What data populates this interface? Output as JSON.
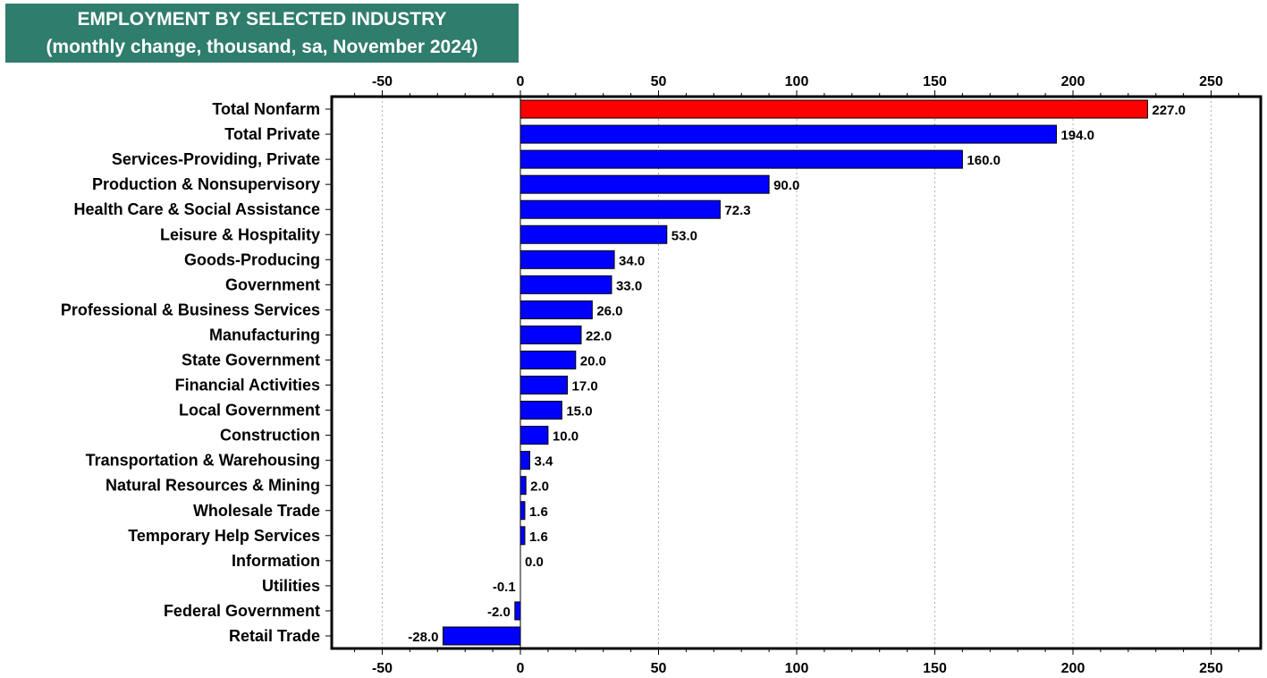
{
  "title_box": {
    "line1": "EMPLOYMENT BY SELECTED INDUSTRY",
    "line2": "(monthly change, thousand, sa, November 2024)",
    "background": "#2f7d6c"
  },
  "chart_data": {
    "type": "bar",
    "orientation": "horizontal",
    "title": "EMPLOYMENT BY SELECTED INDUSTRY",
    "subtitle": "(monthly change, thousand, sa, November 2024)",
    "xlim": [
      -69,
      268
    ],
    "xticks": [
      -50,
      0,
      50,
      100,
      150,
      200,
      250
    ],
    "xtick_labels": [
      "-50",
      "0",
      "50",
      "100",
      "150",
      "200",
      "250"
    ],
    "axis_labels_top_and_bottom": true,
    "grid": "vertical dotted",
    "categories": [
      "Total Nonfarm",
      "Total Private",
      "Services-Providing, Private ",
      "Production & Nonsupervisory",
      "Health Care & Social Assistance",
      "Leisure & Hospitality",
      "Goods-Producing",
      "Government",
      "Professional & Business Services",
      "Manufacturing",
      "State Government",
      "Financial Activities",
      "Local Government",
      "Construction",
      "Transportation & Warehousing",
      "Natural Resources & Mining",
      "Wholesale Trade",
      "Temporary Help Services",
      "Information",
      "Utilities",
      "Federal Government",
      "Retail Trade"
    ],
    "values": [
      227.0,
      194.0,
      160.0,
      90.0,
      72.3,
      53.0,
      34.0,
      33.0,
      26.0,
      22.0,
      20.0,
      17.0,
      15.0,
      10.0,
      3.4,
      2.0,
      1.6,
      1.6,
      0.0,
      -0.1,
      -2.0,
      -28.0
    ],
    "value_labels": [
      "227.0",
      "194.0",
      "160.0",
      "90.0",
      "72.3",
      "53.0",
      "34.0",
      "33.0",
      "26.0",
      "22.0",
      "20.0",
      "17.0",
      "15.0",
      "10.0",
      "3.4",
      "2.0",
      "1.6",
      "1.6",
      "0.0",
      "-0.1",
      "-2.0",
      "-28.0"
    ],
    "colors": {
      "highlight": "#ff0000",
      "bar": "#0000ff",
      "grid": "#b0b0b0"
    },
    "highlight_category": "Total Nonfarm"
  }
}
